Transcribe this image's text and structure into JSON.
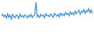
{
  "chart_data": {
    "type": "line",
    "values": [
      55,
      60,
      52,
      58,
      48,
      62,
      50,
      57,
      45,
      60,
      53,
      49,
      58,
      55,
      47,
      61,
      52,
      56,
      50,
      59,
      54,
      48,
      57,
      52,
      60,
      50,
      55,
      58,
      98,
      52,
      57,
      50,
      60,
      54,
      58,
      49,
      62,
      55,
      57,
      52,
      61,
      56,
      50,
      63,
      58,
      54,
      60,
      52,
      64,
      57,
      61,
      55,
      66,
      59,
      63,
      56,
      68,
      60,
      65,
      58,
      70,
      62,
      67,
      73,
      60,
      70,
      66,
      75,
      63,
      72,
      68,
      78,
      65,
      74,
      62
    ],
    "color": "#3a8fd9",
    "ylim": [
      0,
      100
    ],
    "grid": false,
    "tick_labels": false
  }
}
